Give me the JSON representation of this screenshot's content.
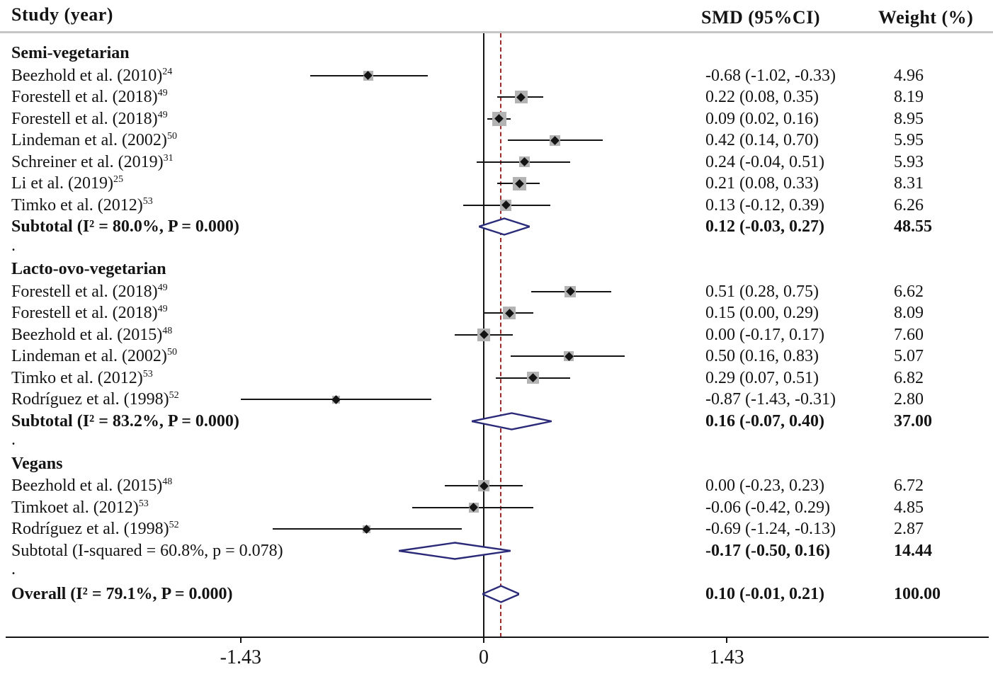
{
  "columns": {
    "study": "Study (year)",
    "smd": "SMD (95%CI)",
    "weight": "Weight (%)"
  },
  "group_separator": ".",
  "axis": {
    "ticks": [
      {
        "value": -1.43,
        "label": "-1.43"
      },
      {
        "value": 0,
        "label": "0"
      },
      {
        "value": 1.43,
        "label": "1.43"
      }
    ]
  },
  "colors": {
    "ci_line": "#141414",
    "marker_square": "#b3b3b3",
    "marker_point": "#141414",
    "zero_line": "#141414",
    "no_effect_dashed_line": "#9b2a2a",
    "pooled_diamond_outline": "#2a2a78",
    "header_separator": "#c6c6c6"
  },
  "chart_data": {
    "type": "forest",
    "effect_measure": "SMD",
    "xlim": [
      -1.43,
      1.43
    ],
    "dashed_line_value": 0.1,
    "groups": [
      {
        "name": "Semi-vegetarian",
        "studies": [
          {
            "label": "Beezhold et al. (2010)",
            "ref": "24",
            "est": -0.68,
            "lo": -1.02,
            "hi": -0.33,
            "weight": 4.96,
            "smd_text": "-0.68 (-1.02, -0.33)",
            "weight_text": "4.96"
          },
          {
            "label": "Forestell et al. (2018)",
            "ref": "49",
            "est": 0.22,
            "lo": 0.08,
            "hi": 0.35,
            "weight": 8.19,
            "smd_text": "0.22 (0.08, 0.35)",
            "weight_text": "8.19"
          },
          {
            "label": "Forestell et al. (2018)",
            "ref": "49",
            "est": 0.09,
            "lo": 0.02,
            "hi": 0.16,
            "weight": 8.95,
            "smd_text": "0.09 (0.02, 0.16)",
            "weight_text": "8.95"
          },
          {
            "label": "Lindeman et al. (2002)",
            "ref": "50",
            "est": 0.42,
            "lo": 0.14,
            "hi": 0.7,
            "weight": 5.95,
            "smd_text": "0.42 (0.14, 0.70)",
            "weight_text": "5.95"
          },
          {
            "label": "Schreiner et al. (2019)",
            "ref": "31",
            "est": 0.24,
            "lo": -0.04,
            "hi": 0.51,
            "weight": 5.93,
            "smd_text": "0.24 (-0.04, 0.51)",
            "weight_text": "5.93"
          },
          {
            "label": "Li et al. (2019)",
            "ref": "25",
            "est": 0.21,
            "lo": 0.08,
            "hi": 0.33,
            "weight": 8.31,
            "smd_text": "0.21 (0.08, 0.33)",
            "weight_text": "8.31"
          },
          {
            "label": "Timko et al. (2012)",
            "ref": "53",
            "est": 0.13,
            "lo": -0.12,
            "hi": 0.39,
            "weight": 6.26,
            "smd_text": "0.13 (-0.12, 0.39)",
            "weight_text": "6.26"
          }
        ],
        "subtotal": {
          "label": "Subtotal  (I² = 80.0%, P = 0.000)",
          "bold": true,
          "est": 0.12,
          "lo": -0.03,
          "hi": 0.27,
          "smd_text": "0.12 (-0.03, 0.27)",
          "weight_text": "48.55"
        }
      },
      {
        "name": "Lacto-ovo-vegetarian",
        "studies": [
          {
            "label": "Forestell et al. (2018)",
            "ref": "49",
            "est": 0.51,
            "lo": 0.28,
            "hi": 0.75,
            "weight": 6.62,
            "smd_text": "0.51 (0.28, 0.75)",
            "weight_text": "6.62"
          },
          {
            "label": "Forestell et al. (2018)",
            "ref": "49",
            "est": 0.15,
            "lo": 0.0,
            "hi": 0.29,
            "weight": 8.09,
            "smd_text": "0.15 (0.00, 0.29)",
            "weight_text": "8.09"
          },
          {
            "label": "Beezhold et al. (2015)",
            "ref": "48",
            "est": 0.0,
            "lo": -0.17,
            "hi": 0.17,
            "weight": 7.6,
            "smd_text": "0.00 (-0.17, 0.17)",
            "weight_text": "7.60"
          },
          {
            "label": "Lindeman et al. (2002)",
            "ref": "50",
            "est": 0.5,
            "lo": 0.16,
            "hi": 0.83,
            "weight": 5.07,
            "smd_text": "0.50 (0.16, 0.83)",
            "weight_text": "5.07"
          },
          {
            "label": "Timko et al. (2012)",
            "ref": "53",
            "est": 0.29,
            "lo": 0.07,
            "hi": 0.51,
            "weight": 6.82,
            "smd_text": "0.29 (0.07, 0.51)",
            "weight_text": "6.82"
          },
          {
            "label": "Rodríguez et al. (1998)",
            "ref": "52",
            "est": -0.87,
            "lo": -1.43,
            "hi": -0.31,
            "weight": 2.8,
            "smd_text": "-0.87 (-1.43, -0.31)",
            "weight_text": "2.80"
          }
        ],
        "subtotal": {
          "label": "Subtotal  (I² = 83.2%, P = 0.000)",
          "bold": true,
          "est": 0.16,
          "lo": -0.07,
          "hi": 0.4,
          "smd_text": "0.16 (-0.07, 0.40)",
          "weight_text": "37.00"
        }
      },
      {
        "name": "Vegans",
        "studies": [
          {
            "label": "Beezhold et al. (2015)",
            "ref": "48",
            "est": 0.0,
            "lo": -0.23,
            "hi": 0.23,
            "weight": 6.72,
            "smd_text": "0.00 (-0.23, 0.23)",
            "weight_text": "6.72"
          },
          {
            "label": "Timkoet al. (2012)",
            "ref": "53",
            "est": -0.06,
            "lo": -0.42,
            "hi": 0.29,
            "weight": 4.85,
            "smd_text": "-0.06 (-0.42, 0.29)",
            "weight_text": "4.85"
          },
          {
            "label": "Rodríguez et al. (1998)",
            "ref": "52",
            "est": -0.69,
            "lo": -1.24,
            "hi": -0.13,
            "weight": 2.87,
            "smd_text": "-0.69 (-1.24, -0.13)",
            "weight_text": "2.87"
          }
        ],
        "subtotal": {
          "label": "Subtotal  (I-squared = 60.8%, p = 0.078)",
          "bold": false,
          "est": -0.17,
          "lo": -0.5,
          "hi": 0.16,
          "smd_text": "-0.17 (-0.50, 0.16)",
          "weight_text": "14.44"
        }
      }
    ],
    "overall": {
      "label": "Overall  (I² = 79.1%, P = 0.000)",
      "bold": true,
      "est": 0.1,
      "lo": -0.01,
      "hi": 0.21,
      "smd_text": "0.10 (-0.01, 0.21)",
      "weight_text": "100.00"
    }
  }
}
